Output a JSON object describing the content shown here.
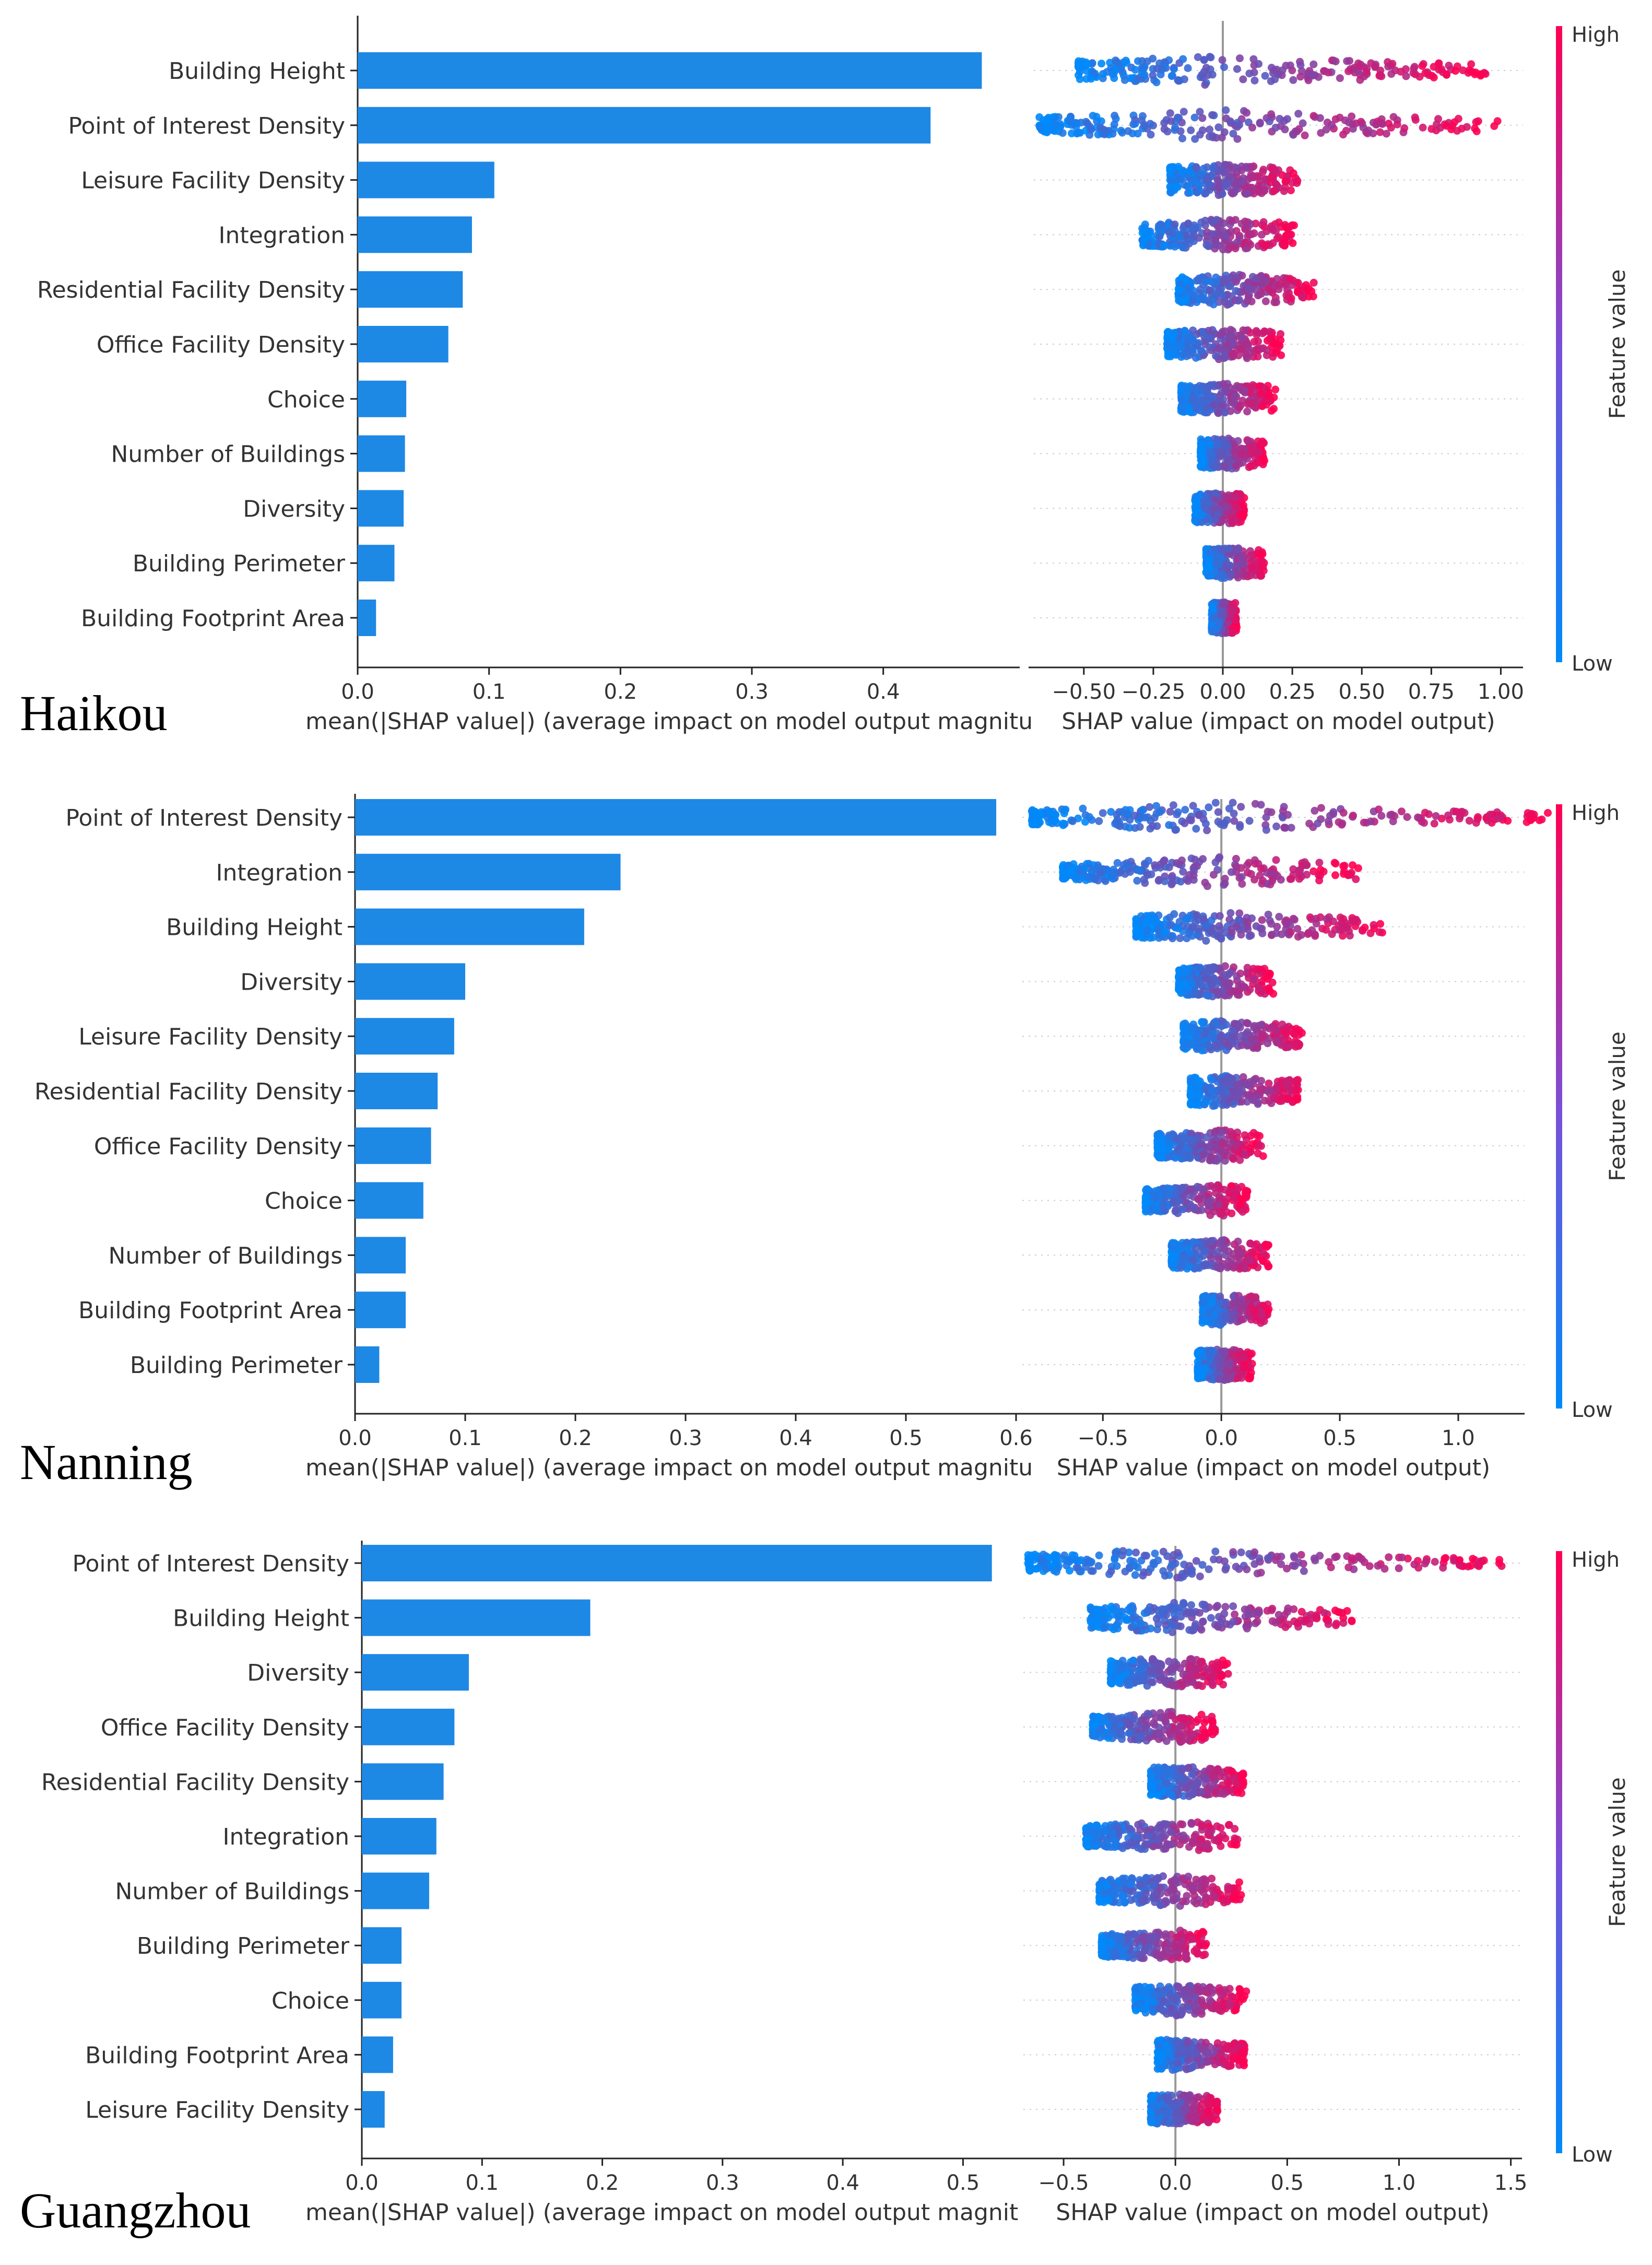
{
  "colors": {
    "bar": "#1e88e5",
    "low": "#008afb",
    "high": "#ff0052",
    "axis": "#222222",
    "zero_line": "#999999",
    "row_grid": "#cccccc"
  },
  "colorbar": {
    "high_label": "High",
    "low_label": "Low",
    "title": "Feature value"
  },
  "chart_data": [
    {
      "type": "bar",
      "city": "Haikou",
      "xlabel": "mean(|SHAP value|) (average impact on model output magnitu",
      "xlim": [
        0,
        0.48
      ],
      "xticks": [
        0.0,
        0.1,
        0.2,
        0.3,
        0.4
      ],
      "xtick_labels": [
        "0.0",
        "0.1",
        "0.2",
        "0.3",
        "0.4"
      ],
      "features": [
        "Building Height",
        "Point of Interest Density",
        "Leisure Facility Density",
        "Integration",
        "Residential Facility Density",
        "Office Facility Density",
        "Choice",
        "Number of Buildings",
        "Diversity",
        "Building Perimeter",
        "Building Footprint Area"
      ],
      "values": [
        0.475,
        0.436,
        0.104,
        0.087,
        0.08,
        0.069,
        0.037,
        0.036,
        0.035,
        0.028,
        0.014
      ],
      "beeswarm": {
        "type": "scatter",
        "xlabel": "SHAP value (impact on model output)",
        "xlim": [
          -0.68,
          1.08
        ],
        "xticks": [
          -0.5,
          -0.25,
          0.0,
          0.25,
          0.5,
          0.75,
          1.0
        ],
        "xtick_labels": [
          "−0.50",
          "−0.25",
          "0.00",
          "0.25",
          "0.50",
          "0.75",
          "1.00"
        ],
        "ranges": [
          [
            -0.52,
            0.95
          ],
          [
            -0.66,
            0.99
          ],
          [
            -0.19,
            0.27
          ],
          [
            -0.29,
            0.26
          ],
          [
            -0.16,
            0.33
          ],
          [
            -0.2,
            0.21
          ],
          [
            -0.15,
            0.19
          ],
          [
            -0.08,
            0.15
          ],
          [
            -0.1,
            0.08
          ],
          [
            -0.06,
            0.15
          ],
          [
            -0.04,
            0.05
          ]
        ]
      }
    },
    {
      "type": "bar",
      "city": "Nanning",
      "xlabel": "mean(|SHAP value|) (average impact on model output magnitu",
      "xlim": [
        0,
        0.6
      ],
      "xticks": [
        0.0,
        0.1,
        0.2,
        0.3,
        0.4,
        0.5,
        0.6
      ],
      "xtick_labels": [
        "0.0",
        "0.1",
        "0.2",
        "0.3",
        "0.4",
        "0.5",
        "0.6"
      ],
      "features": [
        "Point of Interest Density",
        "Integration",
        "Building Height",
        "Diversity",
        "Leisure Facility Density",
        "Residential Facility Density",
        "Office Facility Density",
        "Choice",
        "Number of Buildings",
        "Building Footprint Area",
        "Building Perimeter"
      ],
      "values": [
        0.582,
        0.241,
        0.208,
        0.1,
        0.09,
        0.075,
        0.069,
        0.062,
        0.046,
        0.046,
        0.022
      ],
      "beeswarm": {
        "type": "scatter",
        "xlabel": "SHAP value (impact on model output)",
        "xlim": [
          -0.84,
          1.28
        ],
        "xticks": [
          -0.5,
          0.0,
          0.5,
          1.0
        ],
        "xtick_labels": [
          "−0.5",
          "0.0",
          "0.5",
          "1.0"
        ],
        "ranges": [
          [
            -0.8,
            1.38
          ],
          [
            -0.67,
            0.58
          ],
          [
            -0.36,
            0.68
          ],
          [
            -0.18,
            0.22
          ],
          [
            -0.16,
            0.35
          ],
          [
            -0.13,
            0.33
          ],
          [
            -0.27,
            0.18
          ],
          [
            -0.32,
            0.11
          ],
          [
            -0.21,
            0.2
          ],
          [
            -0.08,
            0.2
          ],
          [
            -0.1,
            0.13
          ]
        ]
      }
    },
    {
      "type": "bar",
      "city": "Guangzhou",
      "xlabel": "mean(|SHAP value|) (average impact on model output magnit",
      "xlim": [
        0,
        0.525
      ],
      "xticks": [
        0.0,
        0.1,
        0.2,
        0.3,
        0.4,
        0.5
      ],
      "xtick_labels": [
        "0.0",
        "0.1",
        "0.2",
        "0.3",
        "0.4",
        "0.5"
      ],
      "features": [
        "Point of Interest Density",
        "Building Height",
        "Diversity",
        "Office Facility Density",
        "Residential Facility Density",
        "Integration",
        "Number of Buildings",
        "Building Perimeter",
        "Choice",
        "Building Footprint Area",
        "Leisure Facility Density"
      ],
      "values": [
        0.524,
        0.19,
        0.089,
        0.077,
        0.068,
        0.062,
        0.056,
        0.033,
        0.033,
        0.026,
        0.019
      ],
      "beeswarm": {
        "type": "scatter",
        "xlabel": "SHAP value (impact on model output)",
        "xlim": [
          -0.68,
          1.55
        ],
        "xticks": [
          -0.5,
          0.0,
          0.5,
          1.0,
          1.5
        ],
        "xtick_labels": [
          "−0.5",
          "0.0",
          "0.5",
          "1.0",
          "1.5"
        ],
        "ranges": [
          [
            -0.66,
            1.48
          ],
          [
            -0.38,
            0.81
          ],
          [
            -0.29,
            0.24
          ],
          [
            -0.37,
            0.18
          ],
          [
            -0.11,
            0.31
          ],
          [
            -0.4,
            0.29
          ],
          [
            -0.34,
            0.3
          ],
          [
            -0.33,
            0.14
          ],
          [
            -0.18,
            0.32
          ],
          [
            -0.08,
            0.31
          ],
          [
            -0.11,
            0.19
          ]
        ]
      }
    }
  ]
}
